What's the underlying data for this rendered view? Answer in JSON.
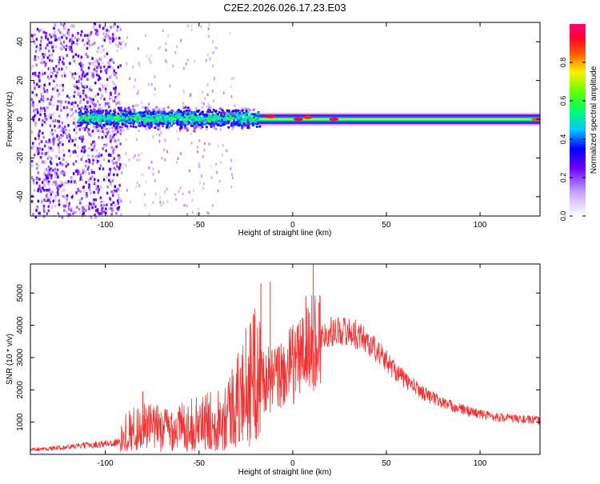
{
  "figure": {
    "title": "C2E2.2026.026.17.23.E03"
  },
  "chart_data": [
    {
      "type": "heatmap",
      "name": "spectrogram",
      "xlabel": "Height of straight line (km)",
      "ylabel": "Frequency (Hz)",
      "xlim": [
        -140,
        132
      ],
      "ylim": [
        -50,
        50
      ],
      "xticks": [
        -100,
        -50,
        0,
        50,
        100
      ],
      "xtick_labels": [
        "-100",
        "-50",
        "0",
        "50",
        "100"
      ],
      "yticks": [
        -40,
        -20,
        0,
        20,
        40
      ],
      "ytick_labels": [
        "-40",
        "-20",
        "0",
        "20",
        "40"
      ],
      "colorbar": {
        "label": "Normalized spectral amplitude",
        "range": [
          0,
          1
        ],
        "ticks": [
          0,
          0.2,
          0.4,
          0.6,
          0.8
        ],
        "tick_labels": [
          "0.0",
          "0.2",
          "0.4",
          "0.6",
          "0.8"
        ],
        "colormap": "rainbow-from-white"
      },
      "regions": [
        {
          "x_range": [
            -140,
            -92
          ],
          "freq_center": 0,
          "freq_spread": 50,
          "amplitude": 0.22,
          "note": "broadband scattered noise"
        },
        {
          "x_range": [
            -115,
            -18
          ],
          "freq_center": 1,
          "freq_spread": 7,
          "amplitude": 0.55,
          "note": "dense band"
        },
        {
          "x_range": [
            -18,
            132
          ],
          "freq_center": 0,
          "freq_spread": 3,
          "amplitude": 0.7,
          "note": "narrow band"
        }
      ],
      "peaks": [
        {
          "x": -12,
          "freq": 1.5,
          "amplitude": 0.95
        },
        {
          "x": 3,
          "freq": 0,
          "amplitude": 0.95
        },
        {
          "x": 8,
          "freq": 1,
          "amplitude": 0.9
        },
        {
          "x": 22,
          "freq": 0,
          "amplitude": 0.95
        },
        {
          "x": 130,
          "freq": 0,
          "amplitude": 0.85
        }
      ]
    },
    {
      "type": "line",
      "name": "snr",
      "xlabel": "Height of straight line (km)",
      "ylabel": "SNR (10 * v/v)",
      "xlim": [
        -140,
        132
      ],
      "ylim": [
        0,
        5900
      ],
      "xticks": [
        -100,
        -50,
        0,
        50,
        100
      ],
      "xtick_labels": [
        "-100",
        "-50",
        "0",
        "50",
        "100"
      ],
      "yticks": [
        1000,
        2000,
        3000,
        4000,
        5000
      ],
      "ytick_labels": [
        "1000",
        "2000",
        "3000",
        "4000",
        "5000"
      ],
      "color": "#ee3333",
      "series": [
        {
          "name": "SNR",
          "x": [
            -140,
            -130,
            -120,
            -110,
            -100,
            -92,
            -90,
            -80,
            -70,
            -60,
            -50,
            -40,
            -30,
            -20,
            -17,
            -15,
            -10,
            -5,
            0,
            5,
            10,
            15,
            20,
            25,
            30,
            35,
            40,
            45,
            50,
            55,
            60,
            70,
            80,
            90,
            100,
            110,
            120,
            132
          ],
          "y": [
            150,
            180,
            230,
            280,
            330,
            380,
            700,
            850,
            800,
            850,
            950,
            1100,
            1600,
            2400,
            2500,
            2300,
            2300,
            2500,
            2800,
            3100,
            3400,
            3650,
            3800,
            3850,
            3800,
            3700,
            3500,
            3200,
            2900,
            2600,
            2300,
            1900,
            1600,
            1400,
            1250,
            1150,
            1100,
            1050
          ]
        }
      ],
      "spikes": [
        {
          "x": -80,
          "y": 1950
        },
        {
          "x": -45,
          "y": 1400
        },
        {
          "x": -30,
          "y": 2500
        },
        {
          "x": -25,
          "y": 3900
        },
        {
          "x": -21,
          "y": 4350
        },
        {
          "x": -17,
          "y": 5300
        },
        {
          "x": -12,
          "y": 5350
        },
        {
          "x": 3,
          "y": 4050
        },
        {
          "x": 7,
          "y": 4900
        },
        {
          "x": 11,
          "y": 5950
        },
        {
          "x": 14,
          "y": 4700
        }
      ]
    }
  ]
}
